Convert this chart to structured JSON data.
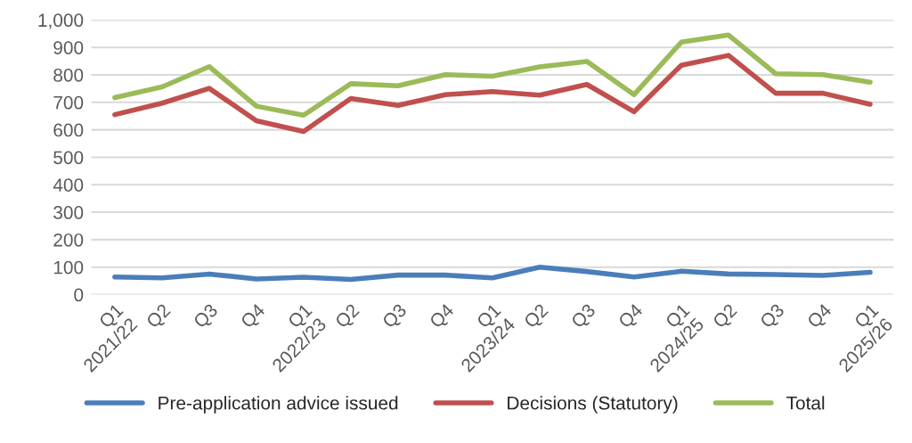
{
  "chart_data": {
    "type": "line",
    "categories": [
      "Q1\n2021/22",
      "Q2",
      "Q3",
      "Q4",
      "Q1\n2022/23",
      "Q2",
      "Q3",
      "Q4",
      "Q1\n2023/24",
      "Q2",
      "Q3",
      "Q4",
      "Q1\n2024/25",
      "Q2",
      "Q3",
      "Q4",
      "Q1\n2025/26"
    ],
    "series": [
      {
        "name": "Pre-application advice issued",
        "color": "#4a7ebb",
        "values": [
          64,
          61,
          75,
          57,
          63,
          55,
          71,
          71,
          61,
          100,
          84,
          64,
          85,
          75,
          73,
          70,
          81
        ]
      },
      {
        "name": "Decisions (Statutory)",
        "color": "#c0504d",
        "values": [
          655,
          697,
          751,
          633,
          594,
          714,
          689,
          728,
          739,
          726,
          765,
          666,
          835,
          871,
          733,
          733,
          693
        ]
      },
      {
        "name": "Total",
        "color": "#9bbb59",
        "values": [
          717,
          756,
          830,
          686,
          653,
          768,
          760,
          801,
          795,
          829,
          849,
          728,
          919,
          945,
          804,
          801,
          773
        ]
      }
    ],
    "ylim": [
      0,
      1000
    ],
    "yticks": [
      0,
      100,
      200,
      300,
      400,
      500,
      600,
      700,
      800,
      900,
      {
        "value": 1000,
        "label": "1,000"
      }
    ],
    "grid": "y",
    "legend": "bottom",
    "marker": "none",
    "line_style": "solid"
  }
}
